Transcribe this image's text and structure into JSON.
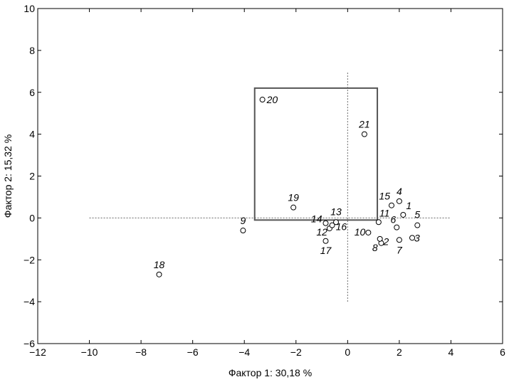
{
  "chart_data": {
    "type": "scatter",
    "title": "",
    "xlabel": "Фактор 1: 30,18 %",
    "ylabel": "Фактор 2: 15,32 %",
    "xlim": [
      -12,
      6
    ],
    "ylim": [
      -6,
      10
    ],
    "x_ticks": [
      -12,
      -10,
      -8,
      -6,
      -4,
      -2,
      0,
      2,
      4,
      6
    ],
    "y_ticks": [
      -6,
      -4,
      -2,
      0,
      2,
      4,
      6,
      8,
      10
    ],
    "x_tick_labels": [
      "−12",
      "−10",
      "−8",
      "−6",
      "−4",
      "−2",
      "0",
      "2",
      "4",
      "6"
    ],
    "y_tick_labels": [
      "−6",
      "−4",
      "−2",
      "0",
      "2",
      "4",
      "6",
      "8",
      "10"
    ],
    "grid": false,
    "legend": "none",
    "reference_lines": [
      {
        "orientation": "horizontal",
        "y": 0,
        "x_from": -10,
        "x_to": 4,
        "style": "dotted"
      },
      {
        "orientation": "vertical",
        "x": 0,
        "y_from": -4,
        "y_to": 7,
        "style": "dotted"
      }
    ],
    "highlight_box": {
      "x_min": -3.6,
      "x_max": 1.15,
      "y_min": -0.1,
      "y_max": 6.2
    },
    "points": [
      {
        "label": "1",
        "x": 2.15,
        "y": 0.15
      },
      {
        "label": "2",
        "x": 1.3,
        "y": -1.2
      },
      {
        "label": "3",
        "x": 2.5,
        "y": -0.95
      },
      {
        "label": "4",
        "x": 2.0,
        "y": 0.8
      },
      {
        "label": "5",
        "x": 2.7,
        "y": -0.35
      },
      {
        "label": "6",
        "x": 1.9,
        "y": -0.45
      },
      {
        "label": "7",
        "x": 2.0,
        "y": -1.05
      },
      {
        "label": "8",
        "x": 1.25,
        "y": -1.0
      },
      {
        "label": "9",
        "x": -4.05,
        "y": -0.6
      },
      {
        "label": "10",
        "x": 0.8,
        "y": -0.7
      },
      {
        "label": "11",
        "x": 1.2,
        "y": -0.2
      },
      {
        "label": "12",
        "x": -0.7,
        "y": -0.5
      },
      {
        "label": "13",
        "x": -0.45,
        "y": -0.2
      },
      {
        "label": "14",
        "x": -0.85,
        "y": -0.25
      },
      {
        "label": "15",
        "x": 1.7,
        "y": 0.6
      },
      {
        "label": "16",
        "x": -0.6,
        "y": -0.35
      },
      {
        "label": "17",
        "x": -0.85,
        "y": -1.1
      },
      {
        "label": "18",
        "x": -7.3,
        "y": -2.7
      },
      {
        "label": "19",
        "x": -2.1,
        "y": 0.5
      },
      {
        "label": "20",
        "x": -3.3,
        "y": 5.65
      },
      {
        "label": "21",
        "x": 0.65,
        "y": 4.0
      }
    ]
  }
}
